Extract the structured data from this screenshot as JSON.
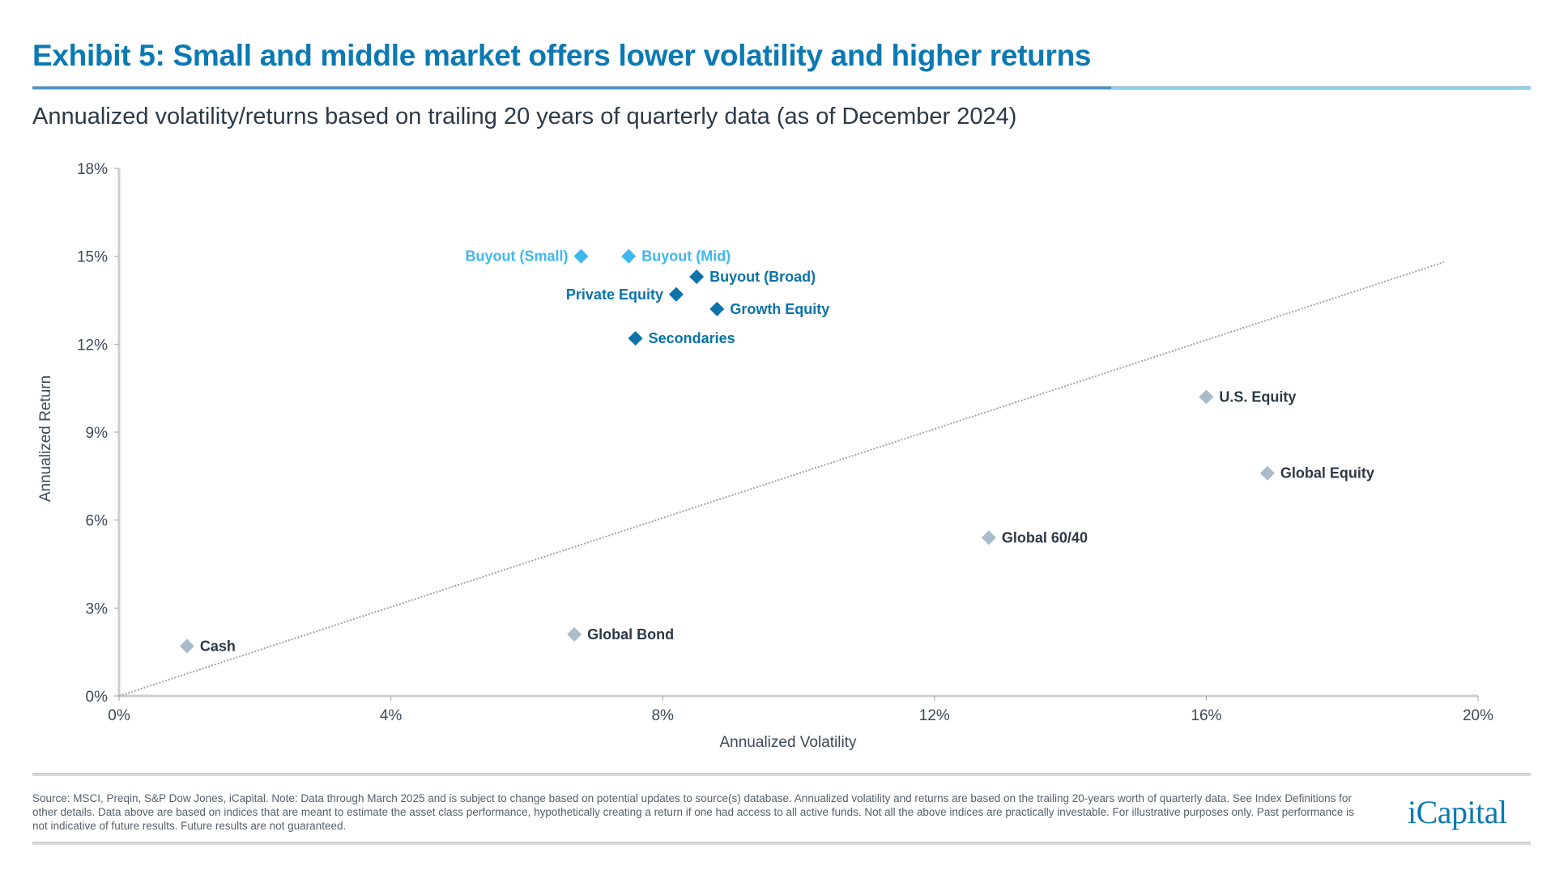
{
  "header": {
    "title": "Exhibit 5: Small and middle market offers lower volatility and higher returns",
    "subtitle": "Annualized volatility/returns based on trailing 20 years of quarterly data (as of December 2024)"
  },
  "chart_data": {
    "type": "scatter",
    "title": "Exhibit 5: Small and middle market offers lower volatility and higher returns",
    "subtitle": "Annualized volatility/returns based on trailing 20 years of quarterly data (as of December 2024)",
    "xlabel": "Annualized Volatility",
    "ylabel": "Annualized Return",
    "xlim": [
      0,
      20
    ],
    "ylim": [
      0,
      18
    ],
    "x_ticks": [
      "0%",
      "4%",
      "8%",
      "12%",
      "16%",
      "20%"
    ],
    "y_ticks": [
      "0%",
      "3%",
      "6%",
      "9%",
      "12%",
      "15%",
      "18%"
    ],
    "grid": false,
    "legend": "none (points directly labeled)",
    "points": [
      {
        "label": "Buyout (Small)",
        "x": 6.8,
        "y": 15.0,
        "group": "small-mid",
        "label_side": "left"
      },
      {
        "label": "Buyout (Mid)",
        "x": 7.5,
        "y": 15.0,
        "group": "small-mid",
        "label_side": "right"
      },
      {
        "label": "Buyout (Broad)",
        "x": 8.5,
        "y": 14.3,
        "group": "private",
        "label_side": "right"
      },
      {
        "label": "Private Equity",
        "x": 8.2,
        "y": 13.7,
        "group": "private",
        "label_side": "left"
      },
      {
        "label": "Growth Equity",
        "x": 8.8,
        "y": 13.2,
        "group": "private",
        "label_side": "right"
      },
      {
        "label": "Secondaries",
        "x": 7.6,
        "y": 12.2,
        "group": "private",
        "label_side": "right"
      },
      {
        "label": "U.S. Equity",
        "x": 16.0,
        "y": 10.2,
        "group": "public",
        "label_side": "right"
      },
      {
        "label": "Global Equity",
        "x": 16.9,
        "y": 7.6,
        "group": "public",
        "label_side": "right"
      },
      {
        "label": "Global 60/40",
        "x": 12.8,
        "y": 5.4,
        "group": "public",
        "label_side": "right"
      },
      {
        "label": "Global Bond",
        "x": 6.7,
        "y": 2.1,
        "group": "public",
        "label_side": "right"
      },
      {
        "label": "Cash",
        "x": 1.0,
        "y": 1.7,
        "group": "public",
        "label_side": "right"
      }
    ],
    "trendline": {
      "style": "dotted",
      "from": [
        0,
        0
      ],
      "to": [
        19.5,
        14.8
      ]
    },
    "colors": {
      "small-mid": "#3db8f0",
      "private": "#0b73a8",
      "public": "#a9bccb",
      "public_label": "#2c3946"
    }
  },
  "footer": {
    "note": "Source: MSCI, Preqin, S&P Dow Jones, iCapital. Note: Data through March 2025 and is subject to change based on potential updates to source(s) database. Annualized volatility and returns are based on the trailing 20-years worth of quarterly data. See Index Definitions for other details. Data above are based on indices that are meant to estimate the asset class performance, hypothetically creating a return if one had access to all active funds. Not all the above indices are practically investable. For illustrative purposes only. Past performance is not indicative of future results. Future results are not guaranteed.",
    "logo": "iCapital"
  }
}
